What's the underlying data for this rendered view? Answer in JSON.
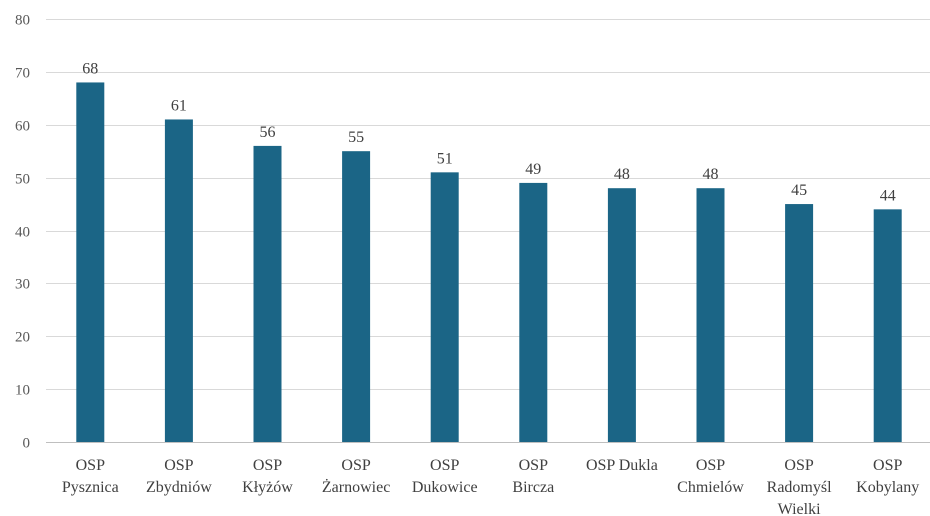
{
  "chart_data": {
    "type": "bar",
    "title": "",
    "xlabel": "",
    "ylabel": "",
    "ylim": [
      0,
      80
    ],
    "yticks": [
      0,
      10,
      20,
      30,
      40,
      50,
      60,
      70,
      80
    ],
    "grid": true,
    "legend": "none",
    "categories": [
      [
        "OSP",
        "Pysznica"
      ],
      [
        "OSP",
        "Zbydniów"
      ],
      [
        "OSP",
        "Kłyżów"
      ],
      [
        "OSP",
        "Żarnowiec"
      ],
      [
        "OSP",
        "Dukowice"
      ],
      [
        "OSP",
        "Bircza"
      ],
      [
        "OSP Dukla"
      ],
      [
        "OSP",
        "Chmielów"
      ],
      [
        "OSP",
        "Radomyśl",
        "Wielki"
      ],
      [
        "OSP",
        "Kobylany"
      ]
    ],
    "series": [
      {
        "values": [
          68,
          61,
          56,
          55,
          51,
          49,
          48,
          48,
          45,
          44
        ],
        "color": "#1b6586"
      }
    ],
    "data_labels": [
      "68",
      "61",
      "56",
      "55",
      "51",
      "49",
      "48",
      "48",
      "45",
      "44"
    ]
  }
}
